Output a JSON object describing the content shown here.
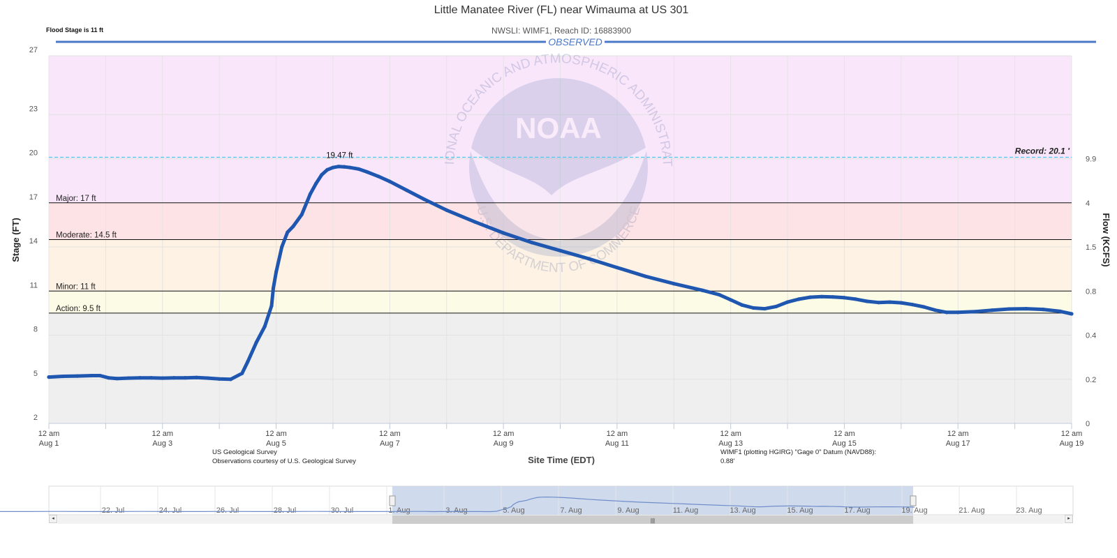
{
  "header": {
    "title": "Little Manatee River (FL) near Wimauma at US 301",
    "subtitle": "NWSLI: WIMF1, Reach ID: 16883900",
    "flood_stage_note": "Flood Stage is 11 ft"
  },
  "section_label": "OBSERVED",
  "credits": {
    "source_line1": "US Geological Survey",
    "source_line2": "Observations courtesy of U.S. Geological Survey",
    "datum_line1": "WIMF1 (plotting HGIRG) \"Gage 0\" Datum (NAVD88):",
    "datum_line2": "0.88'"
  },
  "watermark": {
    "logo_text": "NOAA",
    "ring_top": "NATIONAL OCEANIC AND ATMOSPHERIC ADMINISTRATION",
    "ring_bottom": "U.S. DEPARTMENT OF COMMERCE"
  },
  "colors": {
    "series": "#1f57b0",
    "record_line": "#4dc3f0",
    "band_record": "#f9e6fb",
    "band_major": "#fde3e6",
    "band_moderate": "#fdf2e4",
    "band_minor": "#fcfce6",
    "band_normal": "#efefef",
    "observed_bar": "#4a78c8",
    "navigator_fill": "#c7d3ea"
  },
  "chart_data": {
    "type": "line",
    "title": "Little Manatee River (FL) near Wimauma at US 301",
    "xlabel": "Site Time (EDT)",
    "ylabel": "Stage (FT)",
    "y2label": "Flow (KCFS)",
    "ylim": [
      2,
      27
    ],
    "y_ticks": [
      "27",
      "23",
      "20",
      "17",
      "14",
      "11",
      "8",
      "5",
      "2"
    ],
    "y2_ticks": [
      {
        "stage": 20,
        "label": "9.9"
      },
      {
        "stage": 17,
        "label": "4"
      },
      {
        "stage": 14,
        "label": "1.5"
      },
      {
        "stage": 11,
        "label": "0.8"
      },
      {
        "stage": 8,
        "label": "0.4"
      },
      {
        "stage": 5,
        "label": "0.2"
      },
      {
        "stage": 2,
        "label": "0"
      }
    ],
    "x_ticks": [
      {
        "day": 0,
        "time": "12 am",
        "date": "Aug 1"
      },
      {
        "day": 2,
        "time": "12 am",
        "date": "Aug 3"
      },
      {
        "day": 4,
        "time": "12 am",
        "date": "Aug 5"
      },
      {
        "day": 6,
        "time": "12 am",
        "date": "Aug 7"
      },
      {
        "day": 8,
        "time": "12 am",
        "date": "Aug 9"
      },
      {
        "day": 10,
        "time": "12 am",
        "date": "Aug 11"
      },
      {
        "day": 12,
        "time": "12 am",
        "date": "Aug 13"
      },
      {
        "day": 14,
        "time": "12 am",
        "date": "Aug 15"
      },
      {
        "day": 16,
        "time": "12 am",
        "date": "Aug 17"
      },
      {
        "day": 18,
        "time": "12 am",
        "date": "Aug 19"
      }
    ],
    "thresholds": [
      {
        "name": "Record",
        "label": "Record: 20.1 '",
        "value": 20.1
      },
      {
        "name": "Major",
        "label": "Major: 17 ft",
        "value": 17
      },
      {
        "name": "Moderate",
        "label": "Moderate: 14.5 ft",
        "value": 14.5
      },
      {
        "name": "Minor",
        "label": "Minor: 11 ft",
        "value": 11
      },
      {
        "name": "Action",
        "label": "Action: 9.5 ft",
        "value": 9.5
      }
    ],
    "peak": {
      "day": 5.15,
      "value": 19.47,
      "label": "19.47 ft"
    },
    "grid": true,
    "series": [
      {
        "x_unit": "days since Aug 1 12 am (EDT)",
        "x": [
          0,
          0.25,
          0.5,
          0.75,
          0.9,
          1.05,
          1.2,
          1.4,
          1.6,
          1.8,
          2.0,
          2.2,
          2.4,
          2.6,
          2.8,
          3.0,
          3.2,
          3.4,
          3.5,
          3.65,
          3.8,
          3.92,
          3.95,
          4.0,
          4.1,
          4.2,
          4.3,
          4.45,
          4.6,
          4.7,
          4.8,
          4.9,
          5.0,
          5.1,
          5.2,
          5.3,
          5.45,
          5.6,
          5.8,
          6.0,
          6.3,
          6.6,
          7.0,
          7.5,
          8.0,
          8.5,
          9.0,
          9.5,
          10.0,
          10.5,
          11.0,
          11.5,
          11.8,
          12.0,
          12.2,
          12.4,
          12.6,
          12.8,
          13.0,
          13.2,
          13.4,
          13.6,
          13.8,
          14.0,
          14.2,
          14.4,
          14.6,
          14.8,
          15.0,
          15.2,
          15.4,
          15.6,
          15.8,
          16.0,
          16.3,
          16.6,
          16.9,
          17.2,
          17.5,
          17.8,
          18.0
        ],
        "y": [
          5.15,
          5.2,
          5.22,
          5.25,
          5.25,
          5.1,
          5.05,
          5.08,
          5.1,
          5.1,
          5.08,
          5.1,
          5.1,
          5.12,
          5.08,
          5.02,
          5.0,
          5.4,
          6.2,
          7.5,
          8.6,
          10.0,
          11.2,
          12.3,
          14.0,
          15.0,
          15.4,
          16.2,
          17.6,
          18.3,
          18.9,
          19.25,
          19.4,
          19.47,
          19.45,
          19.4,
          19.3,
          19.1,
          18.8,
          18.45,
          17.85,
          17.25,
          16.5,
          15.7,
          14.95,
          14.3,
          13.75,
          13.2,
          12.6,
          12.0,
          11.5,
          11.05,
          10.75,
          10.4,
          10.05,
          9.85,
          9.8,
          9.95,
          10.25,
          10.45,
          10.58,
          10.62,
          10.6,
          10.55,
          10.45,
          10.3,
          10.22,
          10.25,
          10.2,
          10.08,
          9.92,
          9.7,
          9.55,
          9.55,
          9.6,
          9.7,
          9.78,
          9.8,
          9.75,
          9.62,
          9.45
        ]
      }
    ]
  },
  "navigator": {
    "labels": [
      "22. Jul",
      "24. Jul",
      "26. Jul",
      "28. Jul",
      "30. Jul",
      "1. Aug",
      "3. Aug",
      "5. Aug",
      "7. Aug",
      "9. Aug",
      "11. Aug",
      "13. Aug",
      "15. Aug",
      "17. Aug",
      "19. Aug",
      "21. Aug",
      "23. Aug"
    ],
    "left_arrow": "◂",
    "right_arrow": "▸",
    "grip": "|||",
    "handle_glyph": "‖"
  }
}
